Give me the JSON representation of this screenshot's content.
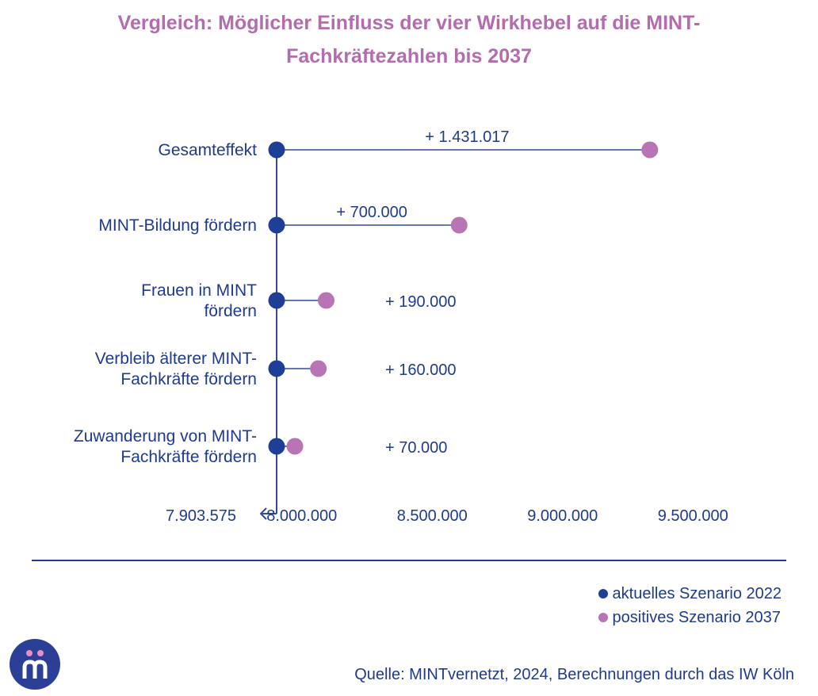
{
  "chart_data": {
    "type": "dumbbell",
    "title_lines": [
      "Vergleich: Möglicher Einfluss der vier Wirkhebel auf die MINT-",
      "Fachkräftezahlen bis 2037"
    ],
    "baseline": 7903575,
    "baseline_label": "7.903.575",
    "x_ticks": [
      8000000,
      8500000,
      9000000,
      9500000
    ],
    "x_tick_labels": [
      "8.000.000",
      "8.500.000",
      "9.000.000",
      "9.500.000"
    ],
    "x_range": [
      7903575,
      9600000
    ],
    "series": [
      {
        "name": "aktuelles Szenario 2022",
        "color": "#1f3f97"
      },
      {
        "name": "positives Szenario 2037",
        "color": "#b874b4"
      }
    ],
    "rows": [
      {
        "label_lines": [
          "Gesamteffekt"
        ],
        "start": 7903575,
        "end": 9334592,
        "delta_label": "+ 1.431.017"
      },
      {
        "label_lines": [
          "MINT-Bildung fördern"
        ],
        "start": 7903575,
        "end": 8603575,
        "delta_label": "+ 700.000"
      },
      {
        "label_lines": [
          "Frauen in MINT",
          "fördern"
        ],
        "start": 7903575,
        "end": 8093575,
        "delta_label": "+ 190.000"
      },
      {
        "label_lines": [
          "Verbleib älterer MINT-",
          "Fachkräfte fördern"
        ],
        "start": 7903575,
        "end": 8063575,
        "delta_label": "+ 160.000"
      },
      {
        "label_lines": [
          "Zuwanderung von MINT-",
          "Fachkräfte fördern"
        ],
        "start": 7903575,
        "end": 7973575,
        "delta_label": "+ 70.000"
      }
    ]
  },
  "legend": {
    "items": [
      {
        "label": "aktuelles Szenario 2022",
        "color": "#1f3f97"
      },
      {
        "label": "positives Szenario 2037",
        "color": "#b874b4"
      }
    ]
  },
  "source": "Quelle: MINTvernetzt, 2024, Berechnungen durch das IW Köln",
  "logo": {
    "icon": "mintvernetzt-logo-icon",
    "bg_color": "#2c3f96",
    "dot_color": "#e58fc6"
  }
}
